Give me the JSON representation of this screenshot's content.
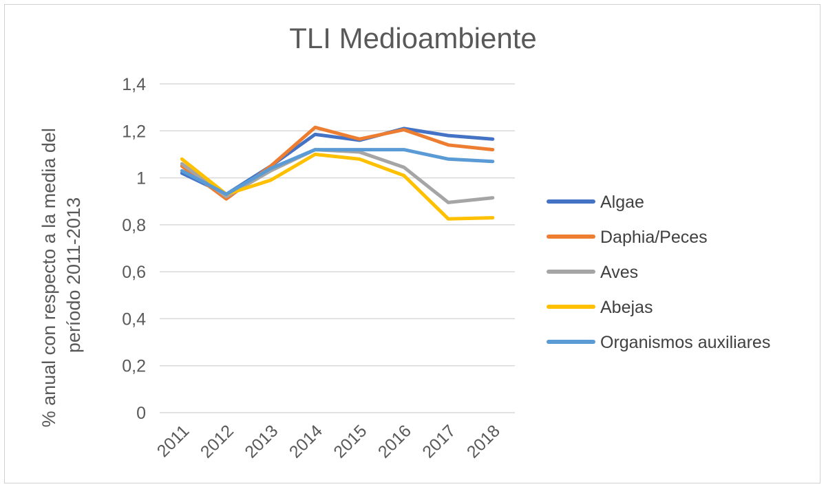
{
  "chart_data": {
    "type": "line",
    "title": "TLI Medioambiente",
    "ylabel_lines": [
      "% anual con respecto a la media del",
      "período 2011-2013"
    ],
    "xlabel": "",
    "categories": [
      "2011",
      "2012",
      "2013",
      "2014",
      "2015",
      "2016",
      "2017",
      "2018"
    ],
    "ylim": [
      0,
      1.4
    ],
    "yticks": [
      0,
      0.2,
      0.4,
      0.6,
      0.8,
      1,
      1.2,
      1.4
    ],
    "ytick_labels": [
      "0",
      "0,2",
      "0,4",
      "0,6",
      "0,8",
      "1",
      "1,2",
      "1,4"
    ],
    "grid": true,
    "legend_position": "right",
    "series": [
      {
        "name": "Algae",
        "color": "#4472C4",
        "values": [
          1.02,
          0.93,
          1.05,
          1.185,
          1.16,
          1.21,
          1.18,
          1.165
        ]
      },
      {
        "name": "Daphia/Peces",
        "color": "#ED7D31",
        "values": [
          1.05,
          0.91,
          1.05,
          1.215,
          1.165,
          1.205,
          1.14,
          1.12
        ]
      },
      {
        "name": "Aves",
        "color": "#A5A5A5",
        "values": [
          1.06,
          0.92,
          1.03,
          1.12,
          1.11,
          1.045,
          0.895,
          0.915
        ]
      },
      {
        "name": "Abejas",
        "color": "#FFC000",
        "values": [
          1.08,
          0.93,
          0.99,
          1.1,
          1.08,
          1.01,
          0.825,
          0.83
        ]
      },
      {
        "name": "Organismos auxiliares",
        "color": "#5B9BD5",
        "values": [
          1.03,
          0.93,
          1.04,
          1.12,
          1.12,
          1.12,
          1.08,
          1.07
        ]
      }
    ]
  }
}
